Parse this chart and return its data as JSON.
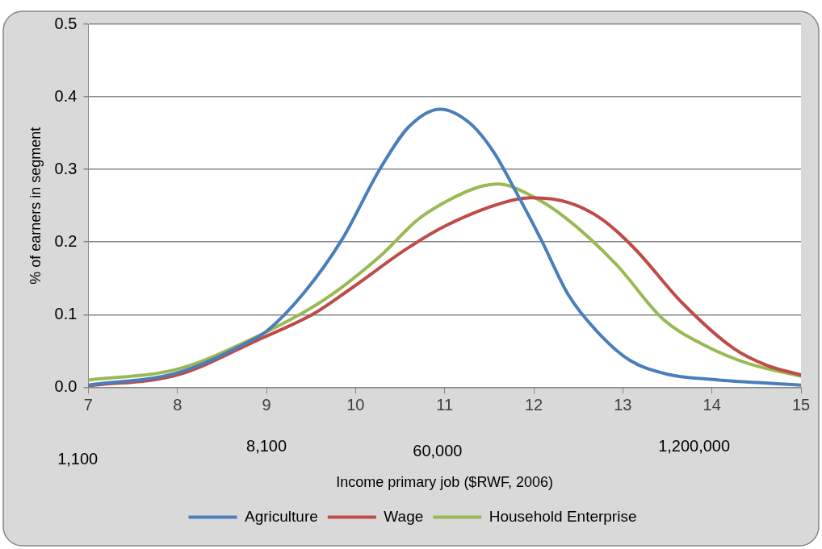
{
  "chart_data": {
    "type": "line",
    "xlabel": "Income primary job ($RWF, 2006)",
    "ylabel": "% of earners in segment",
    "xlim": [
      7,
      15
    ],
    "xticks": [
      7,
      8,
      9,
      10,
      11,
      12,
      13,
      14,
      15
    ],
    "ylim": [
      0,
      0.5
    ],
    "yticks": [
      {
        "value": 0,
        "label": "0.0"
      },
      {
        "value": 0.1,
        "label": "0.1"
      },
      {
        "value": 0.2,
        "label": "0.2"
      },
      {
        "value": 0.3,
        "label": "0.3"
      },
      {
        "value": 0.4,
        "label": "0.4"
      },
      {
        "value": 0.5,
        "label": "0.5"
      }
    ],
    "grid": "y",
    "legend": "bottom",
    "marker": "none",
    "line_style": "solid",
    "annotations": [
      "1,100",
      "8,100",
      "60,000",
      "1,200,000"
    ],
    "series": [
      {
        "name": "Agriculture",
        "color": "#4a7ebb",
        "x": [
          7,
          8,
          8.79,
          9,
          9.42,
          9.85,
          10.27,
          10.6,
          10.95,
          11.28,
          11.55,
          11.81,
          12.08,
          12.39,
          12.71,
          13.08,
          13.5,
          13.98,
          15
        ],
        "values": [
          0.003,
          0.02,
          0.062,
          0.077,
          0.13,
          0.204,
          0.3,
          0.359,
          0.383,
          0.364,
          0.324,
          0.267,
          0.204,
          0.127,
          0.077,
          0.037,
          0.018,
          0.011,
          0.003
        ]
      },
      {
        "name": "Wage",
        "color": "#be4b48",
        "x": [
          7,
          8,
          8.9,
          9.54,
          9.96,
          10.59,
          11.02,
          11.65,
          11.97,
          12.4,
          12.77,
          13.14,
          13.66,
          14.25,
          14.62,
          15
        ],
        "values": [
          0.002,
          0.017,
          0.065,
          0.102,
          0.137,
          0.192,
          0.223,
          0.254,
          0.261,
          0.254,
          0.231,
          0.19,
          0.117,
          0.053,
          0.03,
          0.017
        ]
      },
      {
        "name": "Household Enterprise",
        "color": "#98b954",
        "x": [
          7,
          8,
          8.79,
          9.64,
          10.27,
          10.7,
          11.02,
          11.39,
          11.6,
          11.97,
          12.35,
          12.92,
          13.45,
          13.93,
          14.4,
          15
        ],
        "values": [
          0.01,
          0.025,
          0.064,
          0.12,
          0.18,
          0.231,
          0.256,
          0.276,
          0.28,
          0.264,
          0.234,
          0.17,
          0.094,
          0.057,
          0.033,
          0.015
        ]
      }
    ]
  }
}
